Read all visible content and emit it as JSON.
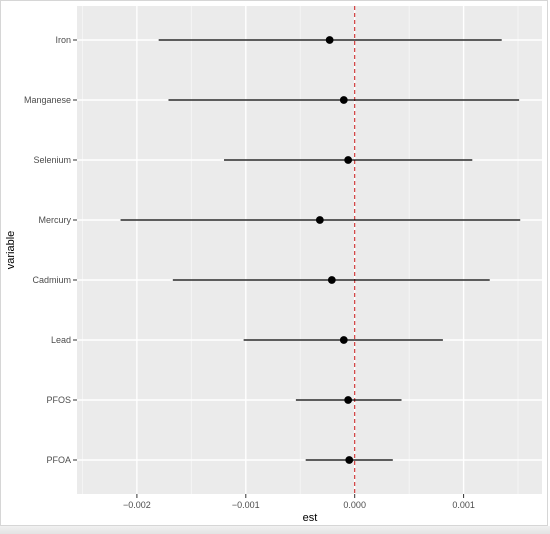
{
  "chart_data": {
    "type": "scatter",
    "subtype": "forest-plot (point estimate with interval)",
    "xlabel": "est",
    "ylabel": "variable",
    "xlim": [
      -0.00255,
      0.00172
    ],
    "x_ticks": [
      -0.002,
      -0.001,
      0.0,
      0.001
    ],
    "x_tick_labels": [
      "−0.002",
      "−0.001",
      "0.000",
      "0.001"
    ],
    "categories": [
      "Iron",
      "Manganese",
      "Selenium",
      "Mercury",
      "Cadmium",
      "Lead",
      "PFOS",
      "PFOA"
    ],
    "series": [
      {
        "est": [
          -0.00023,
          -0.0001,
          -6e-05,
          -0.00032,
          -0.00021,
          -0.0001,
          -6e-05,
          -5e-05
        ],
        "lower": [
          -0.0018,
          -0.00171,
          -0.0012,
          -0.00215,
          -0.00167,
          -0.00102,
          -0.00054,
          -0.00045
        ],
        "upper": [
          0.00135,
          0.00151,
          0.00108,
          0.00152,
          0.00124,
          0.00081,
          0.00043,
          0.00035
        ]
      }
    ],
    "reference_line": {
      "x": 0,
      "style": "dashed",
      "color": "#cc2a2a"
    },
    "grid": true,
    "colors": {
      "panel": "#ebebeb",
      "grid": "#ffffff",
      "points": "#000000"
    }
  }
}
